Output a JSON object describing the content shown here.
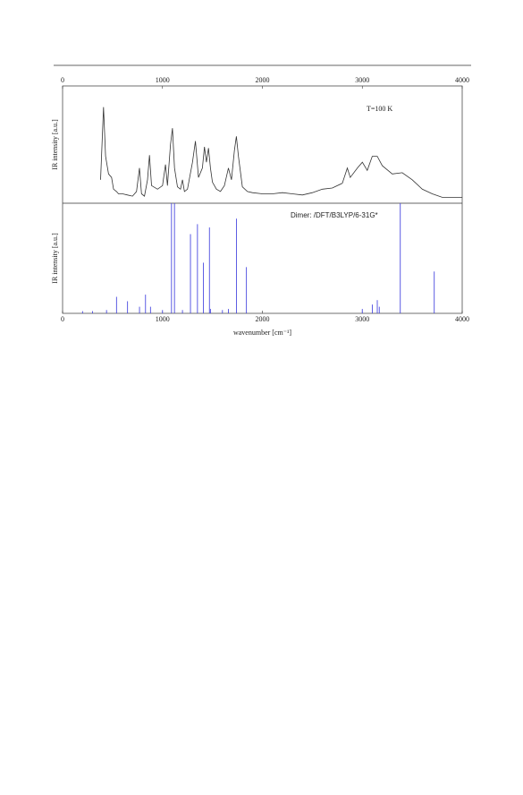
{
  "chart_data": [
    {
      "type": "line",
      "annotation": "T=100 K",
      "ylabel": "IR intensity [a.u.]",
      "xlim": [
        0,
        4000
      ],
      "xticks": [
        0,
        1000,
        2000,
        3000,
        4000
      ],
      "ylim": [
        0,
        100
      ],
      "x": [
        380,
        410,
        430,
        460,
        490,
        510,
        540,
        560,
        600,
        650,
        700,
        740,
        770,
        790,
        820,
        850,
        870,
        890,
        950,
        1000,
        1030,
        1050,
        1080,
        1100,
        1120,
        1150,
        1180,
        1200,
        1220,
        1250,
        1300,
        1330,
        1360,
        1400,
        1420,
        1440,
        1460,
        1480,
        1500,
        1540,
        1580,
        1620,
        1660,
        1690,
        1720,
        1740,
        1760,
        1800,
        1850,
        1900,
        2000,
        2100,
        2200,
        2300,
        2400,
        2500,
        2600,
        2700,
        2800,
        2850,
        2880,
        2950,
        3000,
        3050,
        3100,
        3150,
        3200,
        3300,
        3400,
        3500,
        3600,
        3700,
        3800,
        3900,
        4000
      ],
      "color": "#333333",
      "values": [
        20,
        82,
        40,
        25,
        22,
        12,
        10,
        8,
        8,
        7,
        6,
        10,
        30,
        8,
        6,
        20,
        41,
        15,
        12,
        15,
        33,
        15,
        50,
        64,
        30,
        14,
        12,
        20,
        10,
        12,
        35,
        53,
        22,
        30,
        48,
        35,
        47,
        30,
        18,
        12,
        10,
        15,
        30,
        20,
        45,
        57,
        40,
        14,
        10,
        9,
        8,
        8,
        9,
        8,
        7,
        9,
        12,
        13,
        17,
        30,
        22,
        30,
        35,
        28,
        40,
        40,
        32,
        25,
        26,
        20,
        12,
        8,
        5,
        5,
        5
      ]
    },
    {
      "type": "stem",
      "annotation": "Dimer: /DFT/B3LYP/6-31G*",
      "ylabel": "IR intensity [a.u.]",
      "xlabel": "wavenumber [cm⁻¹]",
      "xlim": [
        0,
        4000
      ],
      "xticks": [
        0,
        1000,
        2000,
        3000,
        4000
      ],
      "ylim": [
        0,
        100
      ],
      "color": "#4a4ae0",
      "x": [
        200,
        300,
        440,
        540,
        650,
        770,
        830,
        880,
        1000,
        1090,
        1120,
        1200,
        1280,
        1350,
        1410,
        1470,
        1480,
        1600,
        1660,
        1740,
        1840,
        3000,
        3100,
        3150,
        3170,
        3380,
        3720
      ],
      "values": [
        2,
        2,
        3,
        15,
        11,
        6,
        17,
        6,
        3,
        100,
        100,
        3,
        72,
        81,
        46,
        78,
        4,
        3,
        4,
        86,
        42,
        4,
        8,
        12,
        6,
        100,
        38
      ]
    }
  ]
}
